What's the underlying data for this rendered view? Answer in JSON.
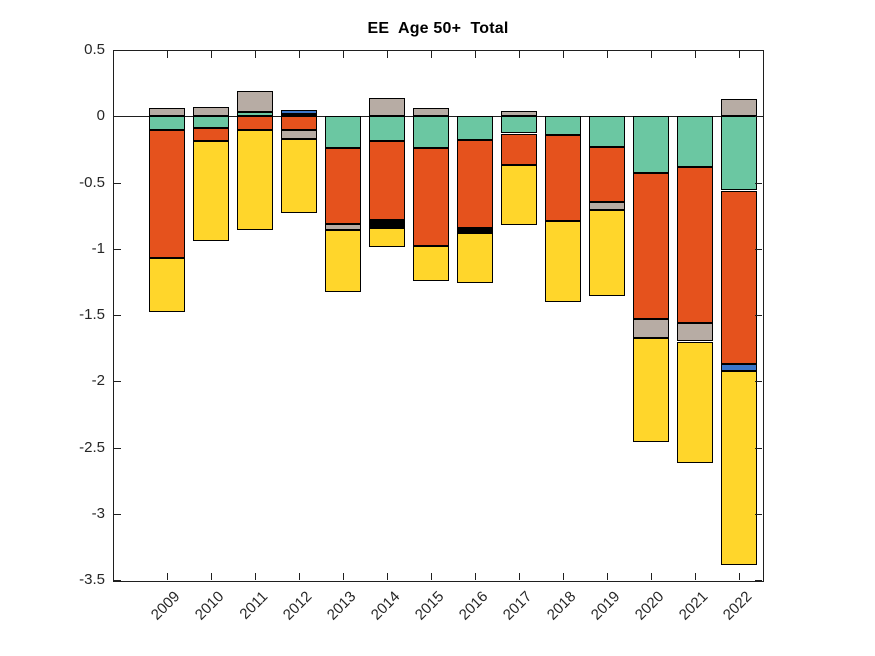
{
  "window": {
    "background": "#ffffff"
  },
  "chart_data": {
    "type": "bar",
    "stacked": true,
    "title": "EE  Age 50+  Total",
    "categories": [
      "2009",
      "2010",
      "2011",
      "2012",
      "2013",
      "2014",
      "2015",
      "2016",
      "2017",
      "2018",
      "2019",
      "2020",
      "2021",
      "2022"
    ],
    "series": [
      {
        "name": "teal-green",
        "color": "#6BC7A2",
        "values": [
          -0.1,
          -0.09,
          0.03,
          0.02,
          -0.24,
          -0.19,
          -0.24,
          -0.18,
          -0.13,
          -0.14,
          -0.23,
          -0.43,
          -0.38,
          -0.56
        ]
      },
      {
        "name": "orange",
        "color": "#E5521D",
        "values": [
          -0.97,
          -0.1,
          -0.1,
          -0.1,
          -0.57,
          -0.59,
          -0.74,
          -0.66,
          -0.24,
          -0.65,
          -0.42,
          -1.1,
          -1.18,
          -1.31
        ]
      },
      {
        "name": "gray",
        "color": "#B7ACA4",
        "values": [
          0.06,
          0.07,
          0.16,
          -0.07,
          -0.05,
          0.14,
          0.06,
          0,
          0.04,
          0,
          -0.06,
          -0.14,
          -0.14,
          0.13
        ]
      },
      {
        "name": "black",
        "color": "#000000",
        "values": [
          0,
          0,
          0,
          0,
          0,
          -0.06,
          0,
          -0.04,
          0,
          0,
          0,
          0,
          0,
          0
        ]
      },
      {
        "name": "blue",
        "color": "#3B76C9",
        "values": [
          0,
          0,
          0,
          0.03,
          0,
          0,
          0,
          0,
          0,
          0,
          0,
          0,
          0,
          -0.05
        ]
      },
      {
        "name": "yellow",
        "color": "#FFD62B",
        "values": [
          -0.41,
          -0.75,
          -0.76,
          -0.56,
          -0.47,
          -0.15,
          -0.26,
          -0.38,
          -0.45,
          -0.61,
          -0.65,
          -0.79,
          -0.92,
          -1.47
        ]
      }
    ],
    "stack_totals_negative": [
      -1.48,
      -0.94,
      -0.86,
      -0.73,
      -1.33,
      -0.99,
      -1.24,
      -1.26,
      -0.82,
      -1.4,
      -1.36,
      -2.46,
      -2.62,
      -3.39
    ],
    "stack_totals_positive": [
      0.06,
      0.07,
      0.19,
      0.05,
      0,
      0.14,
      0.06,
      0,
      0.04,
      0,
      0,
      0,
      0,
      0.13
    ],
    "ylim": [
      -3.5,
      0.5
    ],
    "yticks": {
      "values": [
        0.5,
        0,
        -0.5,
        -1,
        -1.5,
        -2,
        -2.5,
        -3,
        -3.5
      ],
      "labels": [
        "0.5",
        "0",
        "-0.5",
        "-1",
        "-1.5",
        "-2",
        "-2.5",
        "-3",
        "-3.5"
      ]
    },
    "x_label_rotation_deg": 45,
    "grid": false,
    "legend": "none",
    "axis_color": "#262626",
    "bar_border_color": "#000000",
    "zero_line": true
  }
}
